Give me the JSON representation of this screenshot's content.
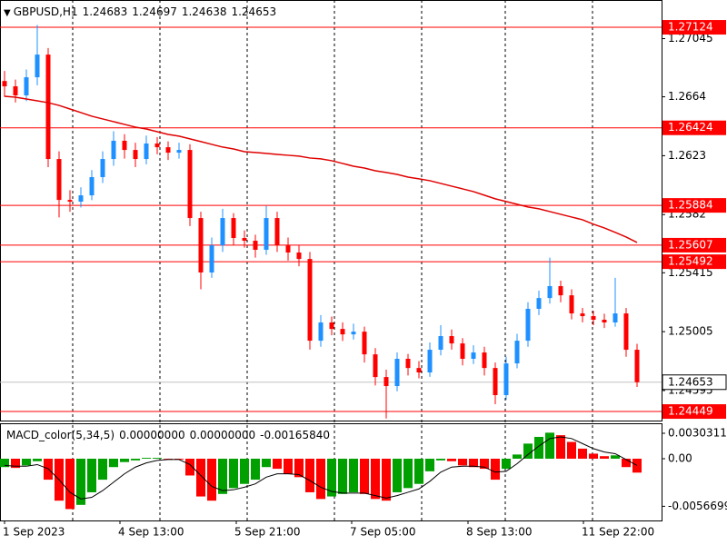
{
  "chart_data": {
    "type": "candlestick",
    "symbol": "GBPUSD,H1",
    "header_values": [
      "1.24683",
      "1.24697",
      "1.24638",
      "1.24653"
    ],
    "macd_label": "MACD_color(5,34,5)",
    "macd_readout": [
      "0.00000000",
      "0.00000000",
      "-0.00165840"
    ],
    "up_color": "#1e90ff",
    "down_color": "#ff0000",
    "ma_color": "#e00000",
    "level_color": "#ff0000",
    "macd_up_color": "#00a000",
    "macd_down_color": "#ff0000",
    "signal_color": "#000000",
    "candles": [
      [
        1.2675,
        1.2682,
        1.2664,
        1.26713
      ],
      [
        1.26713,
        1.2676,
        1.266,
        1.2665
      ],
      [
        1.2665,
        1.2683,
        1.2661,
        1.26776
      ],
      [
        1.26776,
        1.2714,
        1.2672,
        1.26934
      ],
      [
        1.26934,
        1.2698,
        1.2615,
        1.26207
      ],
      [
        1.26207,
        1.2626,
        1.258,
        1.25922
      ],
      [
        1.25922,
        1.2599,
        1.2584,
        1.2591
      ],
      [
        1.2591,
        1.2601,
        1.2587,
        1.25954
      ],
      [
        1.25954,
        1.2613,
        1.2592,
        1.26081
      ],
      [
        1.26081,
        1.2626,
        1.2604,
        1.26207
      ],
      [
        1.26207,
        1.264,
        1.2616,
        1.26334
      ],
      [
        1.26334,
        1.2638,
        1.2621,
        1.2627
      ],
      [
        1.2627,
        1.2632,
        1.2615,
        1.26207
      ],
      [
        1.26207,
        1.2637,
        1.2617,
        1.26315
      ],
      [
        1.26315,
        1.2636,
        1.2624,
        1.26289
      ],
      [
        1.26289,
        1.2633,
        1.262,
        1.26251
      ],
      [
        1.26251,
        1.2632,
        1.2621,
        1.2627
      ],
      [
        1.2627,
        1.2631,
        1.2574,
        1.25796
      ],
      [
        1.25796,
        1.2584,
        1.253,
        1.25417
      ],
      [
        1.25417,
        1.2566,
        1.2538,
        1.25606
      ],
      [
        1.25606,
        1.2586,
        1.2556,
        1.25796
      ],
      [
        1.25796,
        1.2583,
        1.2561,
        1.25657
      ],
      [
        1.25657,
        1.2571,
        1.2559,
        1.25638
      ],
      [
        1.25638,
        1.2568,
        1.2552,
        1.25575
      ],
      [
        1.25575,
        1.2588,
        1.2554,
        1.25796
      ],
      [
        1.25796,
        1.2584,
        1.2556,
        1.25606
      ],
      [
        1.25606,
        1.2566,
        1.255,
        1.25556
      ],
      [
        1.25556,
        1.2561,
        1.2546,
        1.25511
      ],
      [
        1.25511,
        1.2556,
        1.2488,
        1.24942
      ],
      [
        1.24942,
        1.2512,
        1.249,
        1.25069
      ],
      [
        1.25069,
        1.2511,
        1.2498,
        1.25024
      ],
      [
        1.25024,
        1.2507,
        1.2494,
        1.24986
      ],
      [
        1.24986,
        1.2506,
        1.2495,
        1.25005
      ],
      [
        1.25005,
        1.2504,
        1.2479,
        1.24847
      ],
      [
        1.24847,
        1.2489,
        1.2463,
        1.24689
      ],
      [
        1.24689,
        1.2474,
        1.244,
        1.24626
      ],
      [
        1.24626,
        1.2486,
        1.2459,
        1.24816
      ],
      [
        1.24816,
        1.2485,
        1.247,
        1.24752
      ],
      [
        1.24752,
        1.248,
        1.2468,
        1.24721
      ],
      [
        1.24721,
        1.2493,
        1.2469,
        1.24879
      ],
      [
        1.24879,
        1.2505,
        1.2484,
        1.24974
      ],
      [
        1.24974,
        1.2502,
        1.2488,
        1.24923
      ],
      [
        1.24923,
        1.2496,
        1.2477,
        1.24816
      ],
      [
        1.24816,
        1.2491,
        1.2478,
        1.2486
      ],
      [
        1.2486,
        1.249,
        1.247,
        1.24752
      ],
      [
        1.24752,
        1.2479,
        1.245,
        1.24563
      ],
      [
        1.24563,
        1.2483,
        1.2453,
        1.24784
      ],
      [
        1.24784,
        1.2499,
        1.2475,
        1.24942
      ],
      [
        1.24942,
        1.2521,
        1.249,
        1.25164
      ],
      [
        1.25164,
        1.2529,
        1.2512,
        1.25239
      ],
      [
        1.25239,
        1.2552,
        1.252,
        1.25322
      ],
      [
        1.25322,
        1.2536,
        1.2521,
        1.25258
      ],
      [
        1.25258,
        1.253,
        1.2509,
        1.25132
      ],
      [
        1.25132,
        1.2517,
        1.2507,
        1.25113
      ],
      [
        1.25113,
        1.2515,
        1.2505,
        1.25088
      ],
      [
        1.25088,
        1.2513,
        1.2503,
        1.25069
      ],
      [
        1.25069,
        1.2538,
        1.2504,
        1.25132
      ],
      [
        1.25132,
        1.2517,
        1.2483,
        1.24879
      ],
      [
        1.24879,
        1.2492,
        1.2462,
        1.24653
      ]
    ],
    "ma": [
      1.26644,
      1.26637,
      1.26625,
      1.26612,
      1.26599,
      1.2658,
      1.26555,
      1.2653,
      1.26505,
      1.26486,
      1.26467,
      1.26448,
      1.26429,
      1.26416,
      1.26397,
      1.26378,
      1.26366,
      1.26347,
      1.26328,
      1.26309,
      1.2629,
      1.26277,
      1.26258,
      1.26252,
      1.26246,
      1.26239,
      1.26233,
      1.26227,
      1.26214,
      1.26208,
      1.26195,
      1.26176,
      1.26157,
      1.26144,
      1.26125,
      1.26113,
      1.261,
      1.26081,
      1.26069,
      1.26056,
      1.26037,
      1.26018,
      1.25999,
      1.2598,
      1.25955,
      1.2593,
      1.25911,
      1.25892,
      1.25873,
      1.2586,
      1.25841,
      1.25822,
      1.25803,
      1.25784,
      1.25753,
      1.25727,
      1.25696,
      1.25664,
      1.25626
    ],
    "levels": [
      1.27124,
      1.26424,
      1.25884,
      1.25607,
      1.25492,
      1.24449
    ],
    "current_price": 1.24653,
    "ylim": [
      1.24386,
      1.27314
    ],
    "yticks": [
      1.27045,
      1.2664,
      1.2623,
      1.2582,
      1.25415,
      1.25005,
      1.24595
    ],
    "macd": [
      -0.001,
      -0.0011,
      -0.0008,
      -0.0003,
      -0.0025,
      -0.005,
      -0.006,
      -0.0055,
      -0.004,
      -0.0025,
      -0.001,
      -0.0004,
      -0.0002,
      0.0001,
      0.0001,
      0.0,
      -0.0001,
      -0.002,
      -0.0045,
      -0.005,
      -0.0042,
      -0.0035,
      -0.003,
      -0.0025,
      -0.001,
      -0.0012,
      -0.0018,
      -0.0022,
      -0.004,
      -0.0048,
      -0.0045,
      -0.0042,
      -0.004,
      -0.0042,
      -0.0048,
      -0.005,
      -0.004,
      -0.0035,
      -0.003,
      -0.0015,
      -0.0002,
      -0.0003,
      -0.0008,
      -0.001,
      -0.0012,
      -0.0025,
      -0.0012,
      0.0005,
      0.0018,
      0.0026,
      0.0031,
      0.0028,
      0.002,
      0.0012,
      0.0006,
      0.0003,
      0.0004,
      -0.001,
      -0.0016584
    ],
    "signal": [
      -0.0008,
      -0.0009,
      -0.0009,
      -0.0007,
      -0.0012,
      -0.0025,
      -0.004,
      -0.0048,
      -0.0046,
      -0.0038,
      -0.0028,
      -0.0018,
      -0.001,
      -0.0005,
      -0.0002,
      -0.0001,
      -0.0001,
      -0.0007,
      -0.002,
      -0.0033,
      -0.0038,
      -0.0037,
      -0.0034,
      -0.003,
      -0.0022,
      -0.0018,
      -0.0018,
      -0.0019,
      -0.0026,
      -0.0034,
      -0.0039,
      -0.0041,
      -0.0041,
      -0.0041,
      -0.0044,
      -0.0047,
      -0.0044,
      -0.004,
      -0.0036,
      -0.0027,
      -0.0016,
      -0.001,
      -0.0009,
      -0.0009,
      -0.001,
      -0.0016,
      -0.0015,
      -0.0006,
      0.0005,
      0.0015,
      0.0024,
      0.0026,
      0.0024,
      0.0018,
      0.0012,
      0.0008,
      0.0006,
      -0.0001,
      -0.0008
    ],
    "y2lim": [
      -0.00736,
      0.00422
    ],
    "y2ticks": [
      0.0030311,
      {
        "value": 0,
        "label": "0.00"
      },
      -0.0056699
    ],
    "xlabels": [
      "1 Sep 2023",
      "4 Sep 13:00",
      "5 Sep 21:00",
      "7 Sep 05:00",
      "8 Sep 13:00",
      "11 Sep 22:00"
    ]
  }
}
